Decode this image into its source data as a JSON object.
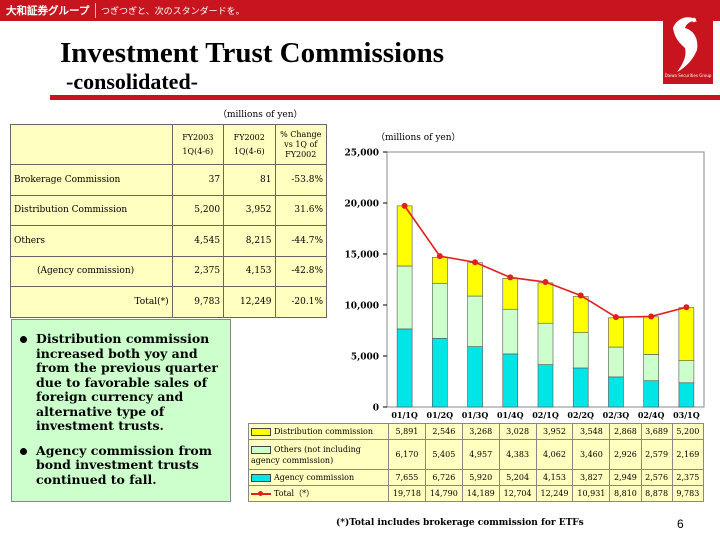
{
  "header": {
    "logo": "大和証券グループ",
    "tagline": "つぎつぎと、次のスタンダードを。",
    "brand_color": "#c8141e",
    "emblem_caption": "Daiwa Securities Group"
  },
  "title": "Investment Trust Commissions",
  "subtitle": "-consolidated-",
  "unit_left": "（millions of yen）",
  "unit_right": "（millions of yen）",
  "summary_table": {
    "col1_line1": "FY2003",
    "col1_line2": "1Q(4-6)",
    "col2_line1": "FY2002",
    "col2_line2": "1Q(4-6)",
    "col3_line1": "% Change",
    "col3_line2": "vs 1Q of",
    "col3_line3": "FY2002",
    "rows": [
      {
        "label": "Brokerage Commission",
        "fy2003": "37",
        "fy2002": "81",
        "change": "-53.8%"
      },
      {
        "label": "Distribution Commission",
        "fy2003": "5,200",
        "fy2002": "3,952",
        "change": "31.6%"
      },
      {
        "label": "Others",
        "fy2003": "4,545",
        "fy2002": "8,215",
        "change": "-44.7%"
      },
      {
        "label": "(Agency commission)",
        "fy2003": "2,375",
        "fy2002": "4,153",
        "change": "-42.8%"
      },
      {
        "label": "Total(*)",
        "fy2003": "9,783",
        "fy2002": "12,249",
        "change": "-20.1%"
      }
    ]
  },
  "notes": [
    "Distribution commission increased both yoy and from the previous quarter due to favorable sales of foreign currency and alternative type of investment trusts.",
    "Agency commission from bond investment trusts continued to fall."
  ],
  "chart_data": {
    "type": "bar",
    "stacked": true,
    "categories": [
      "01/1Q",
      "01/2Q",
      "01/3Q",
      "01/4Q",
      "02/1Q",
      "02/2Q",
      "02/3Q",
      "02/4Q",
      "03/1Q"
    ],
    "ylim": [
      0,
      25000
    ],
    "yticks": [
      "0",
      "5,000",
      "10,000",
      "15,000",
      "20,000",
      "25,000"
    ],
    "yticks_values": [
      0,
      5000,
      10000,
      15000,
      20000,
      25000
    ],
    "series": [
      {
        "name": "Agency commission",
        "color": "#00e6e6",
        "values": [
          7655,
          6726,
          5920,
          5204,
          4153,
          3827,
          2949,
          2576,
          2375
        ],
        "labels": [
          "7,655",
          "6,726",
          "5,920",
          "5,204",
          "4,153",
          "3,827",
          "2,949",
          "2,576",
          "2,375"
        ]
      },
      {
        "name": "Others (not including agency commission)",
        "color": "#ccffcc",
        "values": [
          6170,
          5405,
          4957,
          4383,
          4062,
          3460,
          2926,
          2579,
          2169
        ],
        "labels": [
          "6,170",
          "5,405",
          "4,957",
          "4,383",
          "4,062",
          "3,460",
          "2,926",
          "2,579",
          "2,169"
        ]
      },
      {
        "name": "Distribution commission",
        "color": "#ffff00",
        "values": [
          5891,
          2546,
          3268,
          3028,
          3952,
          3548,
          2868,
          3689,
          5200
        ],
        "labels": [
          "5,891",
          "2,546",
          "3,268",
          "3,028",
          "3,952",
          "3,548",
          "2,868",
          "3,689",
          "5,200"
        ]
      }
    ],
    "total": {
      "name": "Total（*）",
      "color": "#e0201c",
      "values": [
        19718,
        14790,
        14189,
        12704,
        12249,
        10931,
        8810,
        8878,
        9783
      ],
      "labels": [
        "19,718",
        "14,790",
        "14,189",
        "12,704",
        "12,249",
        "10,931",
        "8,810",
        "8,878",
        "9,783"
      ]
    }
  },
  "data_table": {
    "row_distribution": "Distribution commission",
    "row_others": "Others (not including agency commission)",
    "row_agency": "Agency commission",
    "row_total": "Total（*）"
  },
  "footnote": "(*)Total includes brokerage commission for ETFs",
  "page_number": "6"
}
